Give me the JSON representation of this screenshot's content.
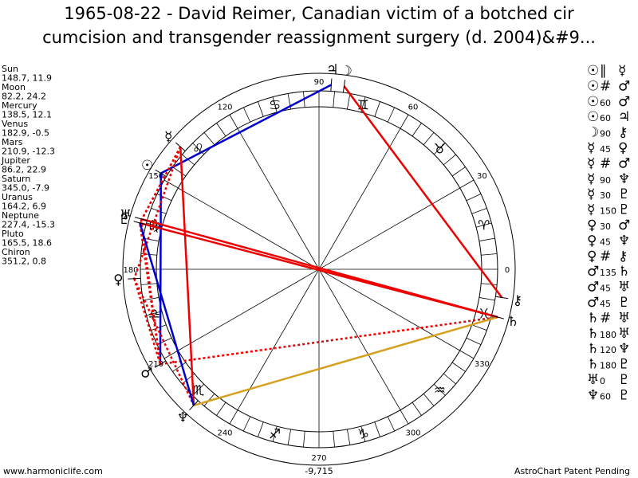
{
  "header": {
    "title_line1": "1965-08-22 - David Reimer, Canadian victim of a botched cir",
    "title_line2": "cumcision and transgender reassignment surgery (d. 2004)&#9..."
  },
  "planets": [
    {
      "name": "Sun",
      "glyph": "☉",
      "position": "148.7, 11.9"
    },
    {
      "name": "Moon",
      "glyph": "☽",
      "position": "82.2, 24.2"
    },
    {
      "name": "Mercury",
      "glyph": "☿",
      "position": "138.5, 12.1"
    },
    {
      "name": "Venus",
      "glyph": "♀",
      "position": "182.9, -0.5"
    },
    {
      "name": "Mars",
      "glyph": "♂",
      "position": "210.9, -12.3"
    },
    {
      "name": "Jupiter",
      "glyph": "♃",
      "position": "86.2, 22.9"
    },
    {
      "name": "Saturn",
      "glyph": "♄",
      "position": "345.0, -7.9"
    },
    {
      "name": "Uranus",
      "glyph": "♅",
      "position": "164.2, 6.9"
    },
    {
      "name": "Neptune",
      "glyph": "♆",
      "position": "227.4, -15.3"
    },
    {
      "name": "Pluto",
      "glyph": "♇",
      "position": "165.5, 18.6"
    },
    {
      "name": "Chiron",
      "glyph": "⚷",
      "position": "351.2, 0.8"
    }
  ],
  "signs": [
    "♈",
    "♉",
    "♊",
    "♋",
    "♌",
    "♍",
    "♎",
    "♏",
    "♐",
    "♑",
    "♒",
    "♓"
  ],
  "degree_labels": [
    0,
    30,
    60,
    90,
    120,
    150,
    180,
    210,
    240,
    270,
    300,
    330
  ],
  "aspects": [
    {
      "p1": "☉",
      "aspect": "∥",
      "p2": "☿"
    },
    {
      "p1": "☉",
      "aspect": "#",
      "p2": "♂"
    },
    {
      "p1": "☉",
      "aspect": 60,
      "p2": "♂"
    },
    {
      "p1": "☉",
      "aspect": 60,
      "p2": "♃"
    },
    {
      "p1": "☽",
      "aspect": 90,
      "p2": "⚷"
    },
    {
      "p1": "☿",
      "aspect": 45,
      "p2": "♀"
    },
    {
      "p1": "☿",
      "aspect": "#",
      "p2": "♂"
    },
    {
      "p1": "☿",
      "aspect": 90,
      "p2": "♆"
    },
    {
      "p1": "☿",
      "aspect": 30,
      "p2": "♇"
    },
    {
      "p1": "☿",
      "aspect": 150,
      "p2": "♇"
    },
    {
      "p1": "♀",
      "aspect": 30,
      "p2": "♂"
    },
    {
      "p1": "♀",
      "aspect": 45,
      "p2": "♆"
    },
    {
      "p1": "♀",
      "aspect": "#",
      "p2": "⚷"
    },
    {
      "p1": "♂",
      "aspect": 135,
      "p2": "♄"
    },
    {
      "p1": "♂",
      "aspect": 45,
      "p2": "♅"
    },
    {
      "p1": "♂",
      "aspect": 45,
      "p2": "♇"
    },
    {
      "p1": "♄",
      "aspect": "#",
      "p2": "♅"
    },
    {
      "p1": "♄",
      "aspect": 180,
      "p2": "♅"
    },
    {
      "p1": "♄",
      "aspect": 120,
      "p2": "♆"
    },
    {
      "p1": "♄",
      "aspect": 180,
      "p2": "♇"
    },
    {
      "p1": "♅",
      "aspect": 0,
      "p2": "♇"
    },
    {
      "p1": "♆",
      "aspect": 60,
      "p2": "♇"
    }
  ],
  "footer": {
    "website": "www.harmoniclife.com",
    "number": "-9,715",
    "credit": "AstroChart Patent Pending"
  }
}
